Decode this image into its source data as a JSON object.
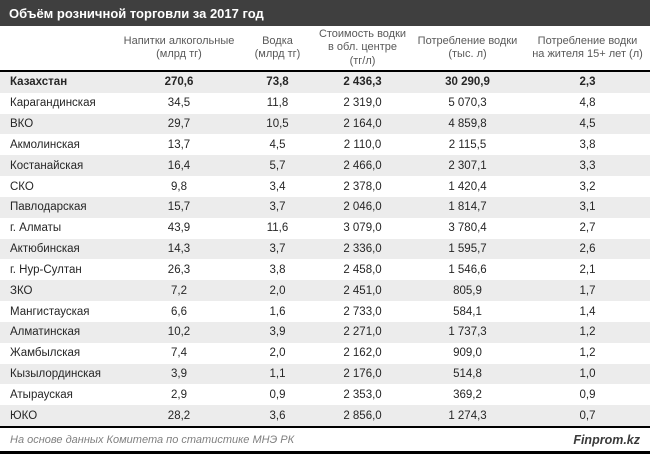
{
  "title": "Объём розничной торговли за 2017 год",
  "footer": {
    "source": "На основе данных Комитета по статистике МНЭ РК",
    "brand": "Finprom.kz"
  },
  "colors": {
    "title_bar_bg": "#3f3f3f",
    "title_text": "#ffffff",
    "header_text": "#595959",
    "body_text": "#262626",
    "stripe_bg": "#ececec",
    "border": "#000000",
    "footer_text": "#808080",
    "brand_text": "#3a3a3a"
  },
  "table": {
    "header_display": [
      "",
      "Напитки алкогольные\n(млрд тг)",
      "Водка\n(млрд тг)",
      "Стоимость водки\nв обл. центре\n(тг/л)",
      "Потребление водки\n(тыс. л)",
      "Потребление водки\nна жителя 15+ лет (л)"
    ]
  },
  "chart_data": {
    "type": "table",
    "title": "Объём розничной торговли за 2017 год",
    "columns": [
      "",
      "Напитки алкогольные (млрд тг)",
      "Водка (млрд тг)",
      "Стоимость водки в обл. центре (тг/л)",
      "Потребление водки (тыс. л)",
      "Потребление водки на жителя 15+ лет (л)"
    ],
    "rows": [
      [
        "Казахстан",
        "270,6",
        "73,8",
        "2 436,3",
        "30 290,9",
        "2,3"
      ],
      [
        "Карагандинская",
        "34,5",
        "11,8",
        "2 319,0",
        "5 070,3",
        "4,8"
      ],
      [
        "ВКО",
        "29,7",
        "10,5",
        "2 164,0",
        "4 859,8",
        "4,5"
      ],
      [
        "Акмолинская",
        "13,7",
        "4,5",
        "2 110,0",
        "2 115,5",
        "3,8"
      ],
      [
        "Костанайская",
        "16,4",
        "5,7",
        "2 466,0",
        "2 307,1",
        "3,3"
      ],
      [
        "СКО",
        "9,8",
        "3,4",
        "2 378,0",
        "1 420,4",
        "3,2"
      ],
      [
        "Павлодарская",
        "15,7",
        "3,7",
        "2 046,0",
        "1 814,7",
        "3,1"
      ],
      [
        "г. Алматы",
        "43,9",
        "11,6",
        "3 079,0",
        "3 780,4",
        "2,7"
      ],
      [
        "Актюбинская",
        "14,3",
        "3,7",
        "2 336,0",
        "1 595,7",
        "2,6"
      ],
      [
        "г. Нур-Султан",
        "26,3",
        "3,8",
        "2 458,0",
        "1 546,6",
        "2,1"
      ],
      [
        "ЗКО",
        "7,2",
        "2,0",
        "2 451,0",
        "805,9",
        "1,7"
      ],
      [
        "Мангистауская",
        "6,6",
        "1,6",
        "2 733,0",
        "584,1",
        "1,4"
      ],
      [
        "Алматинская",
        "10,2",
        "3,9",
        "2 271,0",
        "1 737,3",
        "1,2"
      ],
      [
        "Жамбылская",
        "7,4",
        "2,0",
        "2 162,0",
        "909,0",
        "1,2"
      ],
      [
        "Кызылординская",
        "3,9",
        "1,1",
        "2 176,0",
        "514,8",
        "1,0"
      ],
      [
        "Атырауская",
        "2,9",
        "0,9",
        "2 353,0",
        "369,2",
        "0,9"
      ],
      [
        "ЮКО",
        "28,2",
        "3,6",
        "2 856,0",
        "1 274,3",
        "0,7"
      ]
    ]
  }
}
